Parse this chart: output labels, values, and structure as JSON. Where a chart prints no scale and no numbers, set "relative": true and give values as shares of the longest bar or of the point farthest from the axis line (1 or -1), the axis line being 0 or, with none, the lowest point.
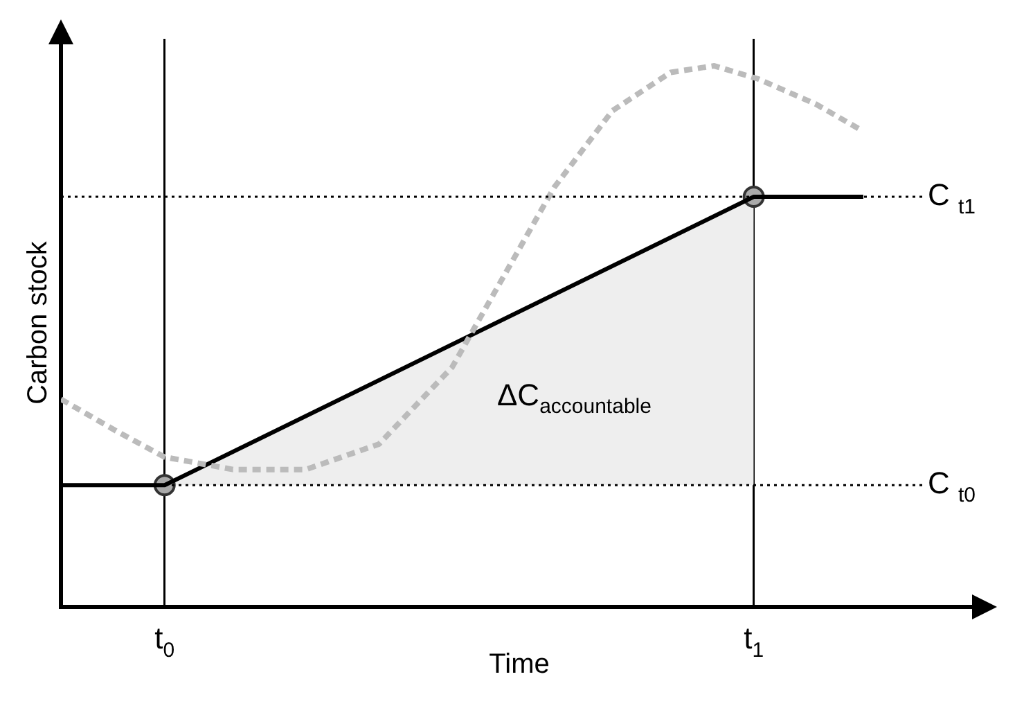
{
  "chart_data": {
    "type": "line",
    "relative": true,
    "xlabel": "Time",
    "ylabel": "Carbon stock",
    "xlim": [
      -0.176,
      1.38
    ],
    "xticks": [
      {
        "value": 0,
        "label": "t$_{0}$"
      },
      {
        "value": 1,
        "label": "t$_{1}$"
      }
    ],
    "tick_labels": "x",
    "grid": "x",
    "legend": false,
    "series": [
      {
        "type": "area",
        "color": "#eeeeee",
        "x": [
          0,
          1
        ],
        "values": [
          0.225,
          0.758
        ]
      },
      {
        "type": "line",
        "color": "#bbbbbb",
        "line_style": "dashed",
        "marker": "none",
        "x": [
          -0.176,
          -0.082,
          0,
          0.116,
          0.24,
          0.364,
          0.488,
          0.562,
          0.661,
          0.76,
          0.859,
          0.933,
          1.007,
          1.106,
          1.181
        ],
        "values": [
          0.384,
          0.325,
          0.277,
          0.254,
          0.254,
          0.301,
          0.443,
          0.585,
          0.775,
          0.917,
          0.988,
          1.0,
          0.976,
          0.929,
          0.882
        ]
      },
      {
        "color": "#000000",
        "line_style": "solid",
        "marker": "none",
        "x": [
          -0.176,
          0,
          1,
          1.186
        ],
        "values": [
          0.225,
          0.225,
          0.758,
          0.758
        ]
      },
      {
        "type": "scatter",
        "color": "#aaaaaa",
        "marker": "circle",
        "x": [
          0,
          1
        ],
        "values": [
          0.225,
          0.758
        ]
      }
    ],
    "ref_lines": [
      {
        "axis": "y",
        "value": 0.225,
        "label": "C $_{t0}$",
        "line_style": "dotted"
      },
      {
        "axis": "y",
        "value": 0.758,
        "label": "C $_{t1}$",
        "line_style": "dotted"
      }
    ],
    "annotations": [
      "ΔC$_{accountable}$"
    ]
  }
}
